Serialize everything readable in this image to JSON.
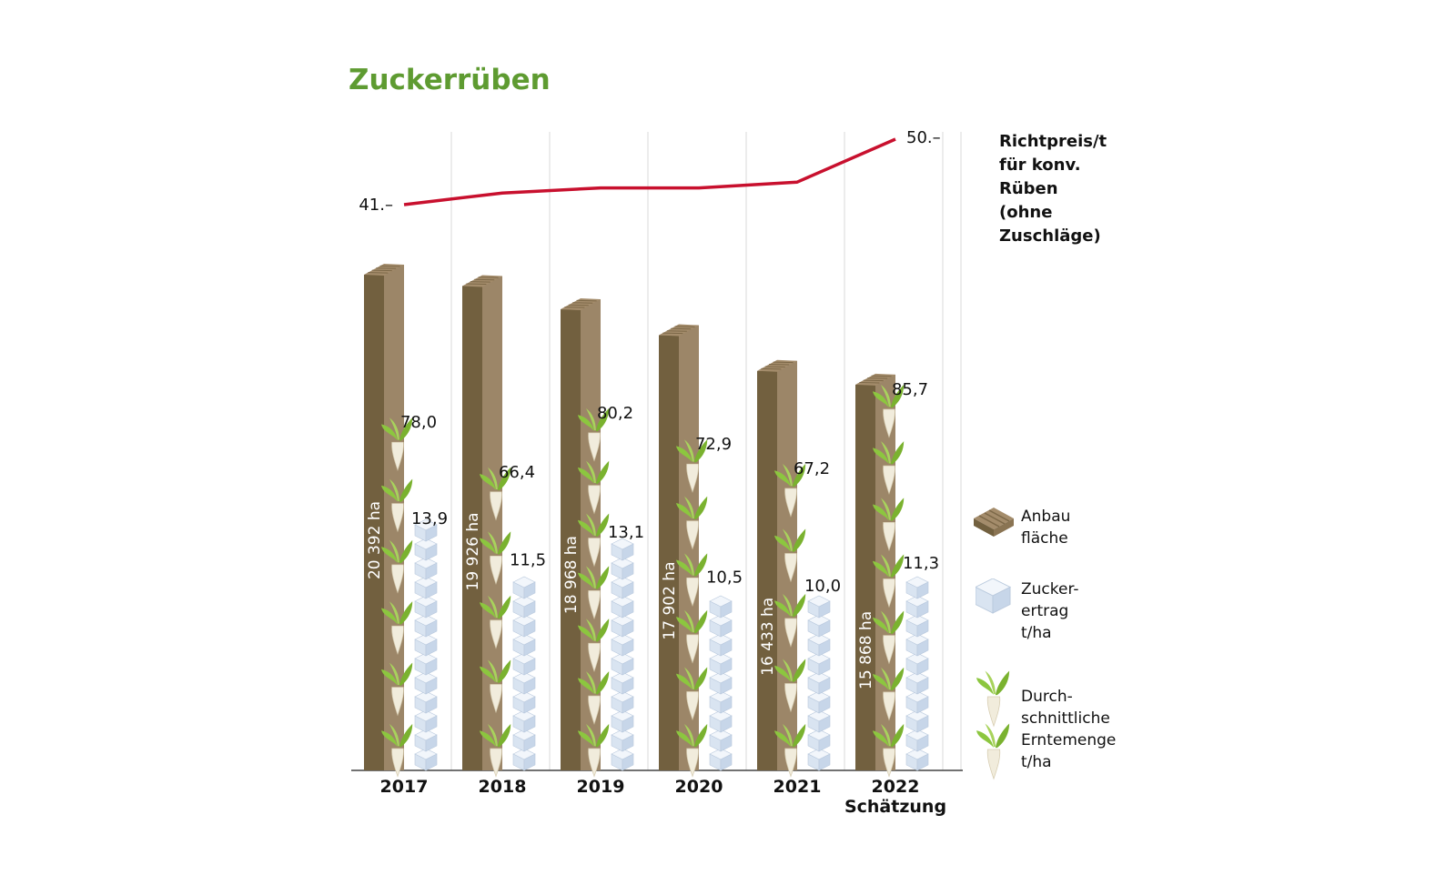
{
  "title": "Zuckerrüben",
  "price_label": "Richtpreis/t\nfür konv.\nRüben\n (ohne\nZuschläge)",
  "colors": {
    "title": "#5e9b31",
    "area_dark": "#72603f",
    "area_light": "#9c8668",
    "price_line": "#c8102e",
    "sugar_cube": "#dde7f3",
    "beet_leaf": "#8cc63f",
    "beet_root": "#f1ecdc"
  },
  "chart_data": {
    "type": "bar",
    "categories": [
      "2017",
      "2018",
      "2019",
      "2020",
      "2021",
      "2022\nSchätzung"
    ],
    "series": [
      {
        "name": "Anbaufläche",
        "unit": "ha",
        "values": [
          20392,
          19926,
          18968,
          17902,
          16433,
          15868
        ],
        "labels": [
          "20 392 ha",
          "19 926 ha",
          "18 968 ha",
          "17 902 ha",
          "16 433 ha",
          "15 868 ha"
        ]
      },
      {
        "name": "Durchschnittliche Erntemenge t/ha",
        "values": [
          78.0,
          66.4,
          80.2,
          72.9,
          67.2,
          85.7
        ],
        "labels": [
          "78,0",
          "66,4",
          "80,2",
          "72,9",
          "67,2",
          "85,7"
        ]
      },
      {
        "name": "Zuckerertrag t/ha",
        "values": [
          13.9,
          11.5,
          13.1,
          10.5,
          10.0,
          11.3
        ],
        "labels": [
          "13,9",
          "11,5",
          "13,1",
          "10,5",
          "10,0",
          "11,3"
        ]
      },
      {
        "name": "Richtpreis/t für konv. Rüben (ohne Zuschläge)",
        "values": [
          41,
          42.6,
          43.3,
          43.3,
          44.1,
          50
        ],
        "labels": [
          "41.–",
          "",
          "",
          "",
          "",
          "50.–"
        ]
      }
    ],
    "legend": [
      {
        "icon": "wood-post-icon",
        "label": "Anbau\nfläche"
      },
      {
        "icon": "sugar-cube-icon",
        "label": "Zucker-\nertrag\nt/ha"
      },
      {
        "icon": "sugar-beet-icon",
        "label": "Durch-\nschnittliche\nErntemenge\nt/ha"
      }
    ]
  }
}
